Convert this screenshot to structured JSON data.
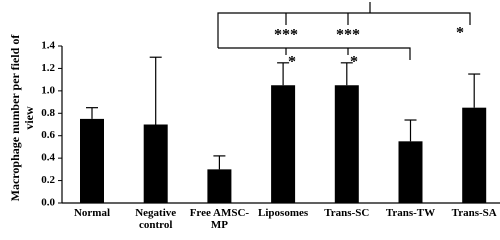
{
  "chart_data": {
    "type": "bar",
    "y_label": "Macrophage number per field of view",
    "categories": [
      "Normal",
      "Negative control",
      "Free AMSC-MP",
      "Liposomes",
      "Trans-SC",
      "Trans-TW",
      "Trans-SA"
    ],
    "values": [
      0.75,
      0.7,
      0.3,
      1.05,
      1.05,
      0.55,
      0.85
    ],
    "errors": [
      0.1,
      0.6,
      0.12,
      0.2,
      0.2,
      0.19,
      0.3
    ],
    "color": "#000000",
    "ylim": [
      0,
      1.4
    ],
    "yticks": [
      {
        "value": 0,
        "label": "0.0"
      },
      0.2,
      0.4,
      0.6,
      0.8,
      {
        "value": 1,
        "label": "1.0"
      },
      1.2,
      1.4
    ],
    "annotations": [
      "***",
      "***",
      "*",
      "*",
      "*"
    ]
  }
}
